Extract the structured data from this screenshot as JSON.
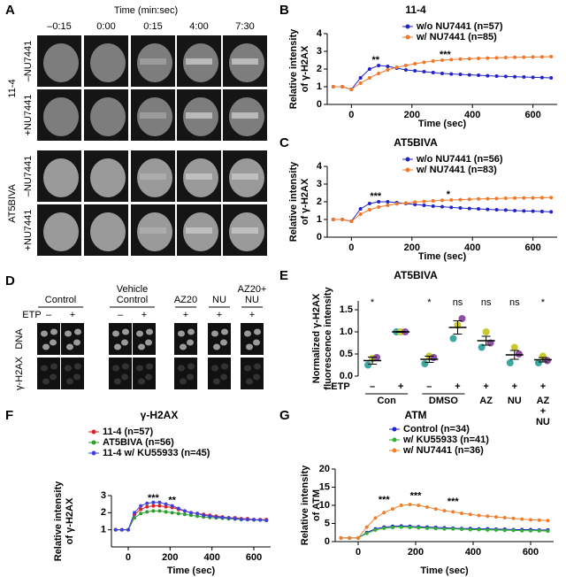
{
  "panels": {
    "A": {
      "label": "A",
      "axis_title": "Time (min:sec)",
      "times": [
        "–0:15",
        "0:00",
        "0:15",
        "4:00",
        "7:30"
      ],
      "cell_lines": [
        "11-4",
        "AT5BIVA"
      ],
      "treatments": [
        "–NU7441",
        "+NU7441"
      ]
    },
    "D": {
      "label": "D",
      "etp_label": "ETP",
      "rows": [
        "DNA",
        "γ-H2AX"
      ],
      "columns": [
        {
          "label": "Control",
          "etp": [
            "–",
            "+"
          ]
        },
        {
          "label": "Vehicle Control",
          "etp": [
            "–",
            "+"
          ]
        },
        {
          "label": "AZ20",
          "etp": [
            "+"
          ]
        },
        {
          "label": "NU",
          "etp": [
            "+"
          ]
        },
        {
          "label": "AZ20+ NU",
          "etp": [
            "+"
          ]
        }
      ]
    }
  },
  "chart_data": [
    {
      "type": "line",
      "panel": "B",
      "title": "11-4",
      "x_label": "Time (sec)",
      "y_label": [
        "Relative intensity",
        "of γ-H2AX"
      ],
      "x": [
        -60,
        -30,
        0,
        30,
        60,
        90,
        120,
        150,
        180,
        210,
        240,
        270,
        300,
        330,
        360,
        390,
        420,
        450,
        480,
        510,
        540,
        570,
        600,
        630,
        660
      ],
      "xlim": [
        -80,
        680
      ],
      "xticks": [
        0,
        200,
        400,
        600
      ],
      "ylim": [
        0,
        4
      ],
      "yticks": [
        0,
        1,
        2,
        3,
        4
      ],
      "series": [
        {
          "name": "w/o NU7441 (n=57)",
          "color": "#2323c8",
          "values": [
            1,
            1,
            0.85,
            1.5,
            2.0,
            2.2,
            2.15,
            2.05,
            1.95,
            1.9,
            1.85,
            1.8,
            1.75,
            1.72,
            1.7,
            1.67,
            1.65,
            1.62,
            1.6,
            1.58,
            1.56,
            1.55,
            1.53,
            1.52,
            1.5
          ]
        },
        {
          "name": "w/ NU7441 (n=85)",
          "color": "#f07828",
          "values": [
            1,
            1,
            0.85,
            1.2,
            1.5,
            1.75,
            1.95,
            2.1,
            2.2,
            2.3,
            2.38,
            2.45,
            2.5,
            2.53,
            2.56,
            2.58,
            2.6,
            2.62,
            2.63,
            2.65,
            2.66,
            2.67,
            2.68,
            2.69,
            2.7
          ]
        }
      ],
      "annotations": [
        {
          "text": "**",
          "x": 80,
          "y": 2.5
        },
        {
          "text": "***",
          "x": 310,
          "y": 2.8
        }
      ]
    },
    {
      "type": "line",
      "panel": "C",
      "title": "AT5BIVA",
      "x_label": "Time (sec)",
      "y_label": [
        "Relative intensity",
        "of γ-H2AX"
      ],
      "x": [
        -60,
        -30,
        0,
        30,
        60,
        90,
        120,
        150,
        180,
        210,
        240,
        270,
        300,
        330,
        360,
        390,
        420,
        450,
        480,
        510,
        540,
        570,
        600,
        630,
        660
      ],
      "xlim": [
        -80,
        680
      ],
      "xticks": [
        0,
        200,
        400,
        600
      ],
      "ylim": [
        0,
        4
      ],
      "yticks": [
        0,
        1,
        2,
        3,
        4
      ],
      "series": [
        {
          "name": "w/o NU7441 (n=56)",
          "color": "#2323c8",
          "values": [
            1,
            1,
            0.9,
            1.6,
            1.9,
            2.0,
            2.0,
            1.95,
            1.9,
            1.85,
            1.8,
            1.75,
            1.72,
            1.68,
            1.65,
            1.62,
            1.6,
            1.57,
            1.55,
            1.53,
            1.5,
            1.48,
            1.47,
            1.45,
            1.43
          ]
        },
        {
          "name": "w/ NU7441 (n=83)",
          "color": "#f07828",
          "values": [
            1,
            1,
            0.9,
            1.3,
            1.55,
            1.7,
            1.8,
            1.88,
            1.93,
            1.98,
            2.02,
            2.05,
            2.08,
            2.1,
            2.12,
            2.14,
            2.16,
            2.17,
            2.18,
            2.2,
            2.21,
            2.22,
            2.22,
            2.23,
            2.24
          ]
        }
      ],
      "annotations": [
        {
          "text": "***",
          "x": 80,
          "y": 2.3
        },
        {
          "text": "*",
          "x": 320,
          "y": 2.4
        }
      ]
    },
    {
      "type": "dot",
      "panel": "E",
      "title": "AT5BIVA",
      "y_label": [
        "Normalized γ-H2AX",
        "fluorescence intensity"
      ],
      "x_label": "ETP",
      "ylim": [
        0,
        1.7
      ],
      "yticks": [
        {
          "value": 0,
          "label": "0.0"
        },
        0.5,
        {
          "value": 1,
          "label": "1.0"
        },
        1.5
      ],
      "replicate_colors": [
        "#3aa8a0",
        "#c8c832",
        "#8e4fa0"
      ],
      "groups": [
        {
          "label": "Con",
          "etp": [
            "–",
            "+"
          ],
          "means": [
            0.35,
            1.0
          ],
          "errors": [
            0.08,
            0.01
          ],
          "significance": [
            "*",
            null
          ],
          "replicates": [
            [
              0.25,
              0.4,
              0.42
            ],
            [
              1.0,
              1.0,
              1.0
            ]
          ]
        },
        {
          "label": "DMSO",
          "etp": [
            "–",
            "+"
          ],
          "means": [
            0.38,
            1.1
          ],
          "errors": [
            0.07,
            0.15
          ],
          "significance": [
            "*",
            "ns"
          ],
          "replicates": [
            [
              0.28,
              0.45,
              0.42
            ],
            [
              0.85,
              1.15,
              1.3
            ]
          ]
        },
        {
          "label": "AZ",
          "etp": [
            "+"
          ],
          "means": [
            0.8
          ],
          "errors": [
            0.1
          ],
          "significance": [
            "ns"
          ],
          "replicates": [
            [
              0.65,
              1.0,
              0.75
            ]
          ]
        },
        {
          "label": "NU",
          "etp": [
            "+"
          ],
          "means": [
            0.48
          ],
          "errors": [
            0.1
          ],
          "significance": [
            "ns"
          ],
          "replicates": [
            [
              0.3,
              0.65,
              0.5
            ]
          ]
        },
        {
          "label": "AZ + NU",
          "etp": [
            "+"
          ],
          "means": [
            0.37
          ],
          "errors": [
            0.05
          ],
          "significance": [
            "*"
          ],
          "replicates": [
            [
              0.3,
              0.45,
              0.35
            ]
          ]
        }
      ]
    },
    {
      "type": "line",
      "panel": "F",
      "title": "γ-H2AX",
      "x_label": "Time (sec)",
      "y_label": [
        "Relative intensity",
        "of γ-H2AX"
      ],
      "x": [
        -60,
        -30,
        0,
        30,
        60,
        90,
        120,
        150,
        180,
        210,
        240,
        270,
        300,
        330,
        360,
        390,
        420,
        450,
        480,
        510,
        540,
        570,
        600,
        630,
        660
      ],
      "xlim": [
        -80,
        680
      ],
      "xticks": [
        0,
        200,
        400,
        600
      ],
      "ylim": [
        0,
        3
      ],
      "yticks": [
        1,
        2,
        3
      ],
      "series": [
        {
          "name": "11-4 (n=57)",
          "color": "#e02020",
          "values": [
            1,
            1,
            1,
            1.9,
            2.2,
            2.35,
            2.4,
            2.4,
            2.35,
            2.3,
            2.2,
            2.1,
            2.0,
            1.95,
            1.9,
            1.85,
            1.8,
            1.75,
            1.7,
            1.7,
            1.65,
            1.65,
            1.6,
            1.6,
            1.6
          ]
        },
        {
          "name": "AT5BIVA (n=56)",
          "color": "#2ca02c",
          "values": [
            1,
            1,
            1,
            1.7,
            1.95,
            2.05,
            2.1,
            2.1,
            2.05,
            2.0,
            1.95,
            1.9,
            1.85,
            1.8,
            1.75,
            1.72,
            1.7,
            1.68,
            1.65,
            1.63,
            1.6,
            1.6,
            1.58,
            1.57,
            1.55
          ]
        },
        {
          "name": "11-4 w/ KU55933 (n=45)",
          "color": "#4040e0",
          "values": [
            1,
            1,
            1,
            2.0,
            2.4,
            2.55,
            2.6,
            2.6,
            2.5,
            2.4,
            2.25,
            2.1,
            2.0,
            1.95,
            1.85,
            1.8,
            1.75,
            1.72,
            1.7,
            1.65,
            1.62,
            1.6,
            1.6,
            1.58,
            1.55
          ]
        }
      ],
      "annotations": [
        {
          "text": "***",
          "x": 120,
          "y": 2.85
        },
        {
          "text": "**",
          "x": 210,
          "y": 2.7
        }
      ]
    },
    {
      "type": "line",
      "panel": "G",
      "title": "ATM",
      "x_label": "Time (sec)",
      "y_label": [
        "Relative intensity",
        "of ATM"
      ],
      "x": [
        -60,
        -30,
        0,
        30,
        60,
        90,
        120,
        150,
        180,
        210,
        240,
        270,
        300,
        330,
        360,
        390,
        420,
        450,
        480,
        510,
        540,
        570,
        600,
        630,
        660
      ],
      "xlim": [
        -80,
        680
      ],
      "xticks": [
        0,
        200,
        400,
        600
      ],
      "ylim": [
        0,
        20
      ],
      "yticks": [
        0,
        5,
        10,
        15,
        20
      ],
      "series": [
        {
          "name": "Control (n=34)",
          "color": "#2020d0",
          "values": [
            1,
            1,
            1,
            2.5,
            3.5,
            4,
            4.2,
            4.3,
            4.2,
            4.1,
            4,
            3.9,
            3.8,
            3.7,
            3.6,
            3.6,
            3.5,
            3.5,
            3.4,
            3.4,
            3.3,
            3.3,
            3.3,
            3.2,
            3.2
          ]
        },
        {
          "name": "w/ KU55933 (n=41)",
          "color": "#30b030",
          "values": [
            1,
            1,
            1,
            2.3,
            3.2,
            3.7,
            3.9,
            4,
            3.9,
            3.8,
            3.7,
            3.6,
            3.5,
            3.5,
            3.4,
            3.3,
            3.3,
            3.2,
            3.2,
            3.1,
            3.1,
            3,
            3,
            3,
            2.9
          ]
        },
        {
          "name": "w/ NU7441 (n=36)",
          "color": "#f08030",
          "values": [
            1,
            1,
            1,
            4,
            6.5,
            8,
            9,
            10,
            10.2,
            10,
            9.5,
            9,
            8.5,
            8.2,
            7.8,
            7.5,
            7.2,
            7,
            6.8,
            6.6,
            6.4,
            6.2,
            6,
            5.9,
            5.8
          ]
        }
      ],
      "annotations": [
        {
          "text": "***",
          "x": 90,
          "y": 11.5
        },
        {
          "text": "***",
          "x": 200,
          "y": 12.5
        },
        {
          "text": "***",
          "x": 330,
          "y": 11
        }
      ]
    }
  ]
}
